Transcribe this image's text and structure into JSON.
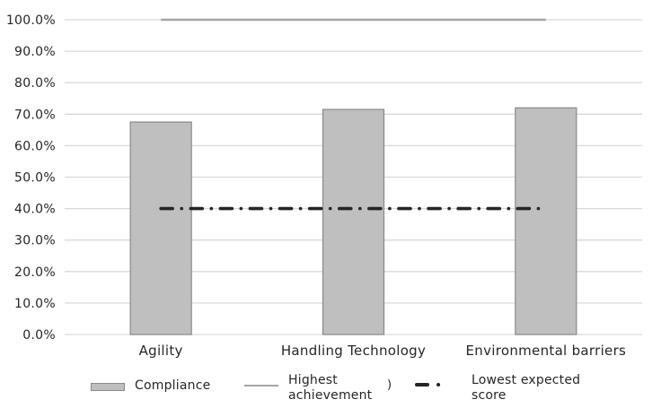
{
  "chart_data": {
    "type": "bar",
    "categories": [
      "Agility",
      "Handling Technology",
      "Environmental barriers"
    ],
    "series": [
      {
        "name": "Compliance",
        "type": "bar",
        "values": [
          67.5,
          71.5,
          72.0
        ],
        "fill": "#bfbfbf",
        "border": "#898989"
      },
      {
        "name": "Highest achievement",
        "type": "line",
        "style": "solid",
        "values": [
          100,
          100,
          100
        ],
        "color": "#a6a6a6"
      },
      {
        "name": "Lowest expected score",
        "type": "line",
        "style": "dash-dot",
        "values": [
          40,
          40,
          40
        ],
        "color": "#262626"
      }
    ],
    "ylim": [
      0,
      100
    ],
    "ytick_step": 10,
    "ytick_labels": [
      "0.0%",
      "10.0%",
      "20.0%",
      "30.0%",
      "40.0%",
      "50.0%",
      "60.0%",
      "70.0%",
      "80.0%",
      "90.0%",
      "100.0%"
    ],
    "grid": true,
    "legend_position": "bottom",
    "legend_stray_text": ")",
    "colors": {
      "background": "#ffffff",
      "gridline": "#d9d9d9",
      "axis_text": "#262626"
    }
  }
}
